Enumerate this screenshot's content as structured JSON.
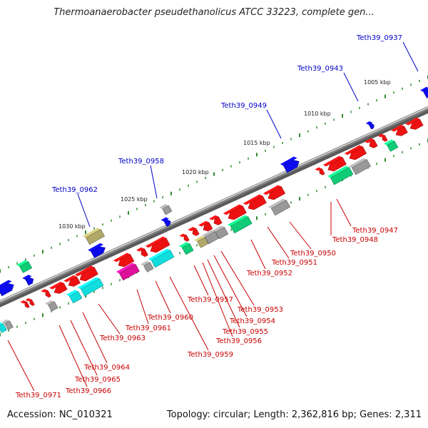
{
  "title": "Thermoanaerobacter pseudethanolicus ATCC 33223, complete gen...",
  "footer": {
    "accession": "Accession: NC_010321",
    "stats": "Topology: circular; Length: 2,362,816 bp; Genes: 2,311"
  },
  "scale_labels": [
    "1005 kbp",
    "1010 kbp",
    "1015 kbp",
    "1020 kbp",
    "1025 kbp",
    "1030 kbp"
  ],
  "upper_gene_labels": [
    "Teth39_0937",
    "Teth39_0943",
    "Teth39_0949",
    "Teth39_0958",
    "Teth39_0962"
  ],
  "lower_gene_labels": [
    "Teth39_0947",
    "Teth39_0948",
    "Teth39_0950",
    "Teth39_0951",
    "Teth39_0952",
    "Teth39_0953",
    "Teth39_0954",
    "Teth39_0955",
    "Teth39_0956",
    "Teth39_0957",
    "Teth39_0959",
    "Teth39_0960",
    "Teth39_0961",
    "Teth39_0963",
    "Teth39_0964",
    "Teth39_0965",
    "Teth39_0966",
    "Teth39_0971"
  ],
  "colors": {
    "forward_label": "#0000c8",
    "reverse_label": "#c80000",
    "backbone": "#808080",
    "tick": "#2e8b2e",
    "gene_red": "#ee1111",
    "gene_blue": "#0b0bee",
    "gene_cyan": "#11dddd",
    "gene_green": "#11cc77",
    "gene_magenta": "#dd1199",
    "gene_gray": "#999999",
    "gene_olive": "#b0a868"
  }
}
